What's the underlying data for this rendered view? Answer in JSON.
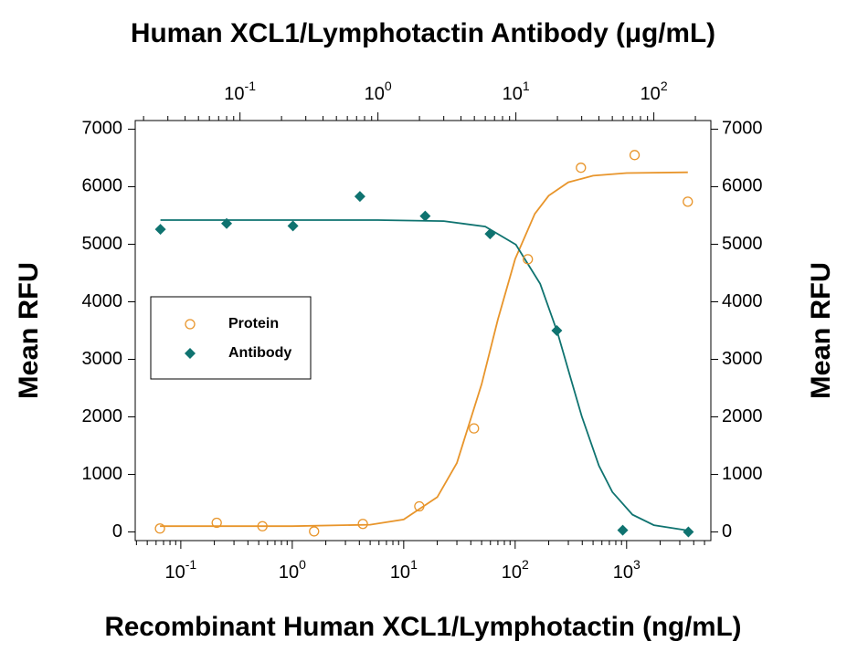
{
  "chart_data": {
    "type": "scatter",
    "title": "Human XCL1/Lymphotactin Antibody (μg/mL)",
    "x_label": "Recombinant Human XCL1/Lymphotactin (ng/mL)",
    "y_label": "Mean RFU",
    "y2_label": "Mean RFU",
    "log_x": true,
    "minor_ticks": true,
    "legend": "left",
    "xlim": [
      0.039,
      5700
    ],
    "xticks": [
      {
        "value": 0.1,
        "label": "10",
        "exponent": "-1"
      },
      {
        "value": 1,
        "label": "10",
        "exponent": "0"
      },
      {
        "value": 10,
        "label": "10",
        "exponent": "1"
      },
      {
        "value": 100,
        "label": "10",
        "exponent": "2"
      },
      {
        "value": 1000,
        "label": "10",
        "exponent": "3"
      }
    ],
    "x2lim": [
      0.0174,
      259
    ],
    "x2ticks": [
      {
        "value": 0.1,
        "label": "10",
        "exponent": "-1"
      },
      {
        "value": 1,
        "label": "10",
        "exponent": "0"
      },
      {
        "value": 10,
        "label": "10",
        "exponent": "1"
      },
      {
        "value": 100,
        "label": "10",
        "exponent": "2"
      }
    ],
    "ylim": [
      -150,
      7150
    ],
    "yticks": [
      0,
      1000,
      2000,
      3000,
      4000,
      5000,
      6000,
      7000
    ],
    "y2lim": [
      -150,
      7150
    ],
    "y2ticks": [
      0,
      1000,
      2000,
      3000,
      4000,
      5000,
      6000,
      7000
    ],
    "series": [
      {
        "name": "Protein",
        "marker": "circle",
        "color": "#e8952b",
        "x": [
          0.065,
          0.21,
          0.54,
          1.57,
          4.3,
          13.8,
          42.7,
          130,
          389,
          1180,
          3540
        ],
        "values": [
          60,
          160,
          100,
          10,
          140,
          445,
          1800,
          4740,
          6330,
          6550,
          5740
        ]
      },
      {
        "name": "Antibody",
        "marker": "diamond",
        "color": "#0f7370",
        "x_axis": "x2",
        "x": [
          0.0265,
          0.08,
          0.242,
          0.74,
          2.2,
          6.5,
          19.8,
          59.5,
          178
        ],
        "values": [
          5260,
          5360,
          5320,
          5830,
          5490,
          5180,
          3500,
          30,
          0
        ]
      },
      {
        "type": "line",
        "color": "#e8952b",
        "x": [
          0.065,
          1,
          5,
          10,
          20,
          30,
          50,
          70,
          100,
          150,
          200,
          300,
          500,
          1000,
          3540
        ],
        "values": [
          100,
          101,
          126,
          217,
          605,
          1198,
          2567,
          3692,
          4742,
          5528,
          5844,
          6077,
          6192,
          6237,
          6250
        ]
      },
      {
        "type": "line",
        "color": "#0f7370",
        "x_axis": "x2",
        "x": [
          0.0265,
          1,
          3,
          6,
          10,
          15,
          20,
          25,
          30,
          40,
          50,
          70,
          100,
          178
        ],
        "values": [
          5420,
          5420,
          5402,
          5307,
          4993,
          4312,
          3468,
          2665,
          2010,
          1151,
          694,
          301,
          118,
          25
        ]
      }
    ]
  }
}
